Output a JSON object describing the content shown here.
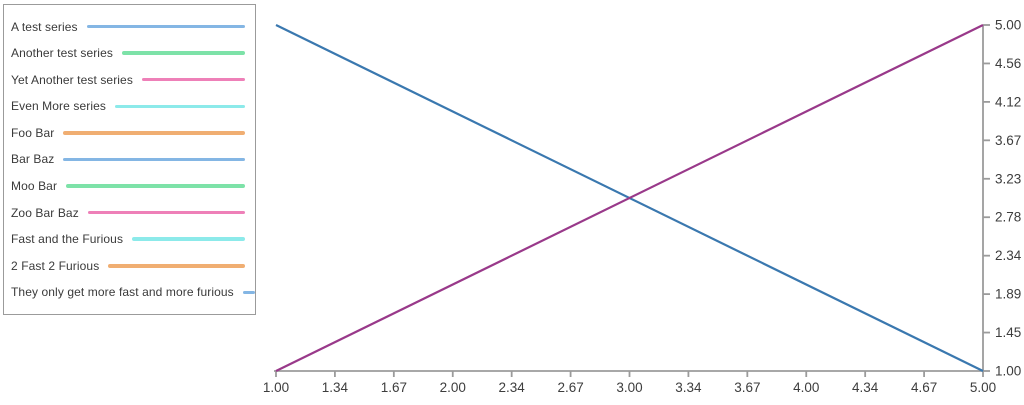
{
  "chart_data": {
    "type": "line",
    "title": "",
    "xlabel": "",
    "ylabel": "",
    "grid": false,
    "xlim": [
      1,
      5
    ],
    "ylim": [
      1,
      5
    ],
    "x_tick_labels": [
      "1.00",
      "1.34",
      "1.67",
      "2.00",
      "2.34",
      "2.67",
      "3.00",
      "3.34",
      "3.67",
      "4.00",
      "4.34",
      "4.67",
      "5.00"
    ],
    "y_tick_labels": [
      "5.00",
      "4.56",
      "4.12",
      "3.67",
      "3.23",
      "2.78",
      "2.34",
      "1.89",
      "1.45",
      "1.00"
    ],
    "axis_placement": {
      "x_axis": "bottom",
      "y_axis": "right"
    },
    "legend_position": "outside-top-left",
    "series": [
      {
        "name": "A test series",
        "legend_color": "#84b6e4"
      },
      {
        "name": "Another test series",
        "legend_color": "#7de2a8"
      },
      {
        "name": "Yet Another test series",
        "legend_color": "#ee80b8"
      },
      {
        "name": "Even More series",
        "legend_color": "#8ceaea"
      },
      {
        "name": "Foo Bar",
        "legend_color": "#f0ae72"
      },
      {
        "name": "Bar Baz",
        "legend_color": "#84b6e4"
      },
      {
        "name": "Moo Bar",
        "legend_color": "#7de2a8"
      },
      {
        "name": "Zoo Bar Baz",
        "legend_color": "#ee80b8"
      },
      {
        "name": "Fast and the Furious",
        "legend_color": "#8ceaea"
      },
      {
        "name": "2 Fast 2 Furious",
        "legend_color": "#f0ae72"
      },
      {
        "name": "They only get more fast and more furious",
        "legend_color": "#84b6e4"
      }
    ],
    "visible_lines": [
      {
        "id": "descending-line",
        "color": "#3a78af",
        "points": [
          [
            1,
            5
          ],
          [
            5,
            1
          ]
        ]
      },
      {
        "id": "ascending-line",
        "color": "#99398a",
        "points": [
          [
            1,
            1
          ],
          [
            5,
            5
          ]
        ]
      }
    ]
  },
  "colors": {
    "axis": "#9b9b9b",
    "tick_text": "#3d3d3d",
    "legend_border": "#9b9b9b",
    "legend_text": "#3a3a3a",
    "background": "#ffffff"
  }
}
